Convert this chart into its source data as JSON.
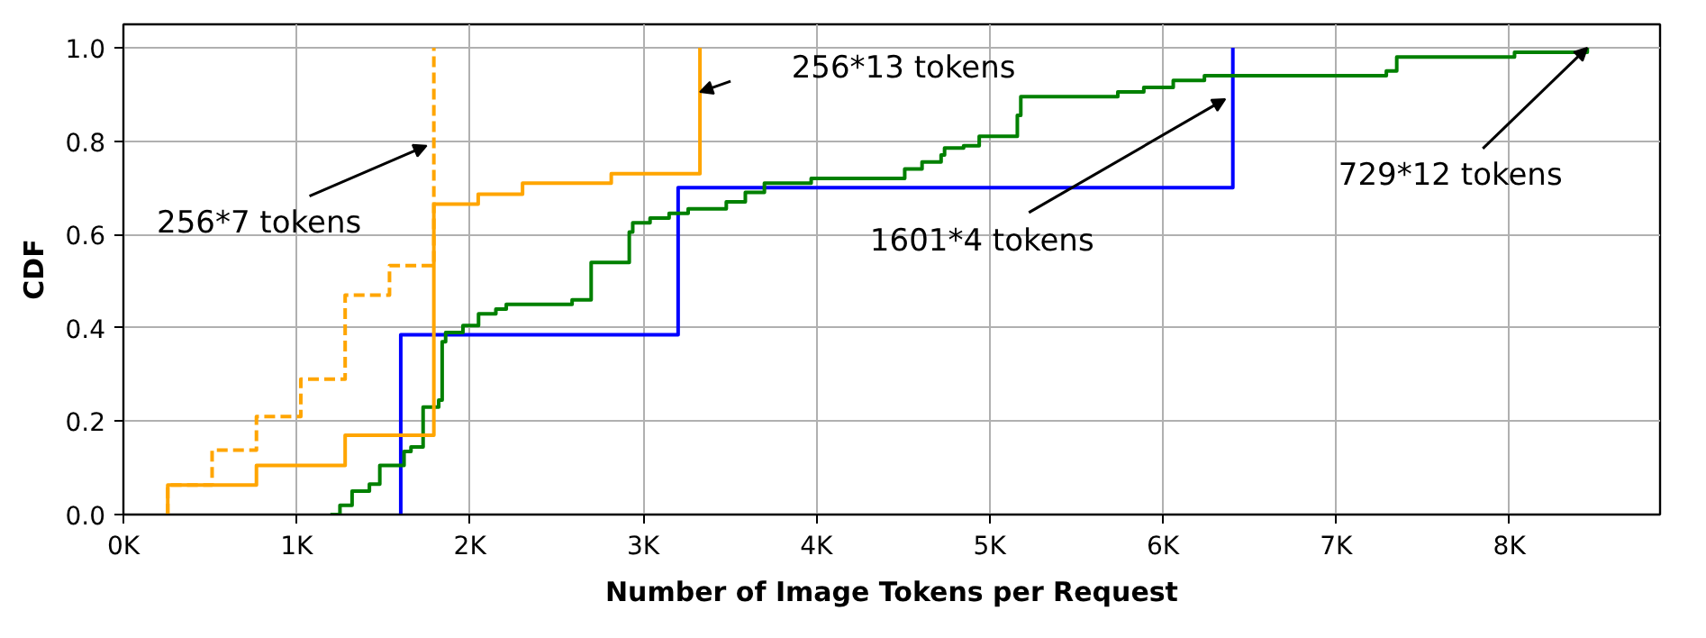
{
  "chart_data": {
    "type": "step",
    "xlabel": "Number of Image Tokens per Request",
    "ylabel": "CDF",
    "xlim": [
      0,
      8870
    ],
    "ylim": [
      0,
      1.05
    ],
    "xticks": [
      {
        "value": 0,
        "label": "0K"
      },
      {
        "value": 1000,
        "label": "1K"
      },
      {
        "value": 2000,
        "label": "2K"
      },
      {
        "value": 3000,
        "label": "3K"
      },
      {
        "value": 4000,
        "label": "4K"
      },
      {
        "value": 5000,
        "label": "5K"
      },
      {
        "value": 6000,
        "label": "6K"
      },
      {
        "value": 7000,
        "label": "7K"
      },
      {
        "value": 8000,
        "label": "8K"
      }
    ],
    "yticks": [
      {
        "value": 0,
        "label": "0.0"
      },
      {
        "value": 0.2,
        "label": "0.2"
      },
      {
        "value": 0.4,
        "label": "0.4"
      },
      {
        "value": 0.6,
        "label": "0.6"
      },
      {
        "value": 0.8,
        "label": "0.8"
      },
      {
        "value": 1,
        "label": "1.0"
      }
    ],
    "grid": true,
    "series": [
      {
        "color": "#0000ff",
        "x": [
          1601,
          1601,
          3202,
          6404
        ],
        "values": [
          0,
          0.385,
          0.7,
          1.0
        ]
      },
      {
        "color": "#008000",
        "x": [
          1195,
          1250,
          1320,
          1420,
          1480,
          1620,
          1660,
          1730,
          1820,
          1840,
          1860,
          1960,
          2050,
          2150,
          2210,
          2590,
          2700,
          2920,
          2940,
          3040,
          3150,
          3260,
          3480,
          3590,
          3700,
          3970,
          4510,
          4610,
          4720,
          4740,
          4850,
          4940,
          5160,
          5180,
          5740,
          5890,
          6060,
          6240,
          7290,
          7350,
          8030,
          8450
        ],
        "values": [
          0,
          0.02,
          0.05,
          0.065,
          0.105,
          0.135,
          0.145,
          0.23,
          0.245,
          0.37,
          0.39,
          0.405,
          0.43,
          0.44,
          0.45,
          0.46,
          0.54,
          0.605,
          0.625,
          0.635,
          0.645,
          0.655,
          0.67,
          0.69,
          0.71,
          0.72,
          0.74,
          0.755,
          0.77,
          0.785,
          0.79,
          0.81,
          0.855,
          0.895,
          0.905,
          0.915,
          0.93,
          0.94,
          0.95,
          0.98,
          0.99,
          1.0
        ]
      },
      {
        "color": "#ffa500",
        "x": [
          256,
          256,
          768,
          1280,
          1792,
          2048,
          2304,
          2816,
          3328
        ],
        "values": [
          0,
          0.063,
          0.105,
          0.17,
          0.665,
          0.686,
          0.71,
          0.73,
          1.0
        ]
      },
      {
        "color": "#ffa500",
        "line_style": "dashed",
        "x": [
          256,
          256,
          512,
          768,
          1024,
          1280,
          1536,
          1792
        ],
        "values": [
          0,
          0.063,
          0.138,
          0.21,
          0.29,
          0.47,
          0.533,
          1.0
        ]
      }
    ],
    "annotations": [
      {
        "text": "256*7 tokens",
        "x": 1750,
        "y": 0.79
      },
      {
        "text": "256*13 tokens",
        "x": 3328,
        "y": 0.905
      },
      {
        "text": "1601*4 tokens",
        "x": 6360,
        "y": 0.89
      },
      {
        "text": "729*12 tokens",
        "x": 8450,
        "y": 1.0
      }
    ]
  }
}
